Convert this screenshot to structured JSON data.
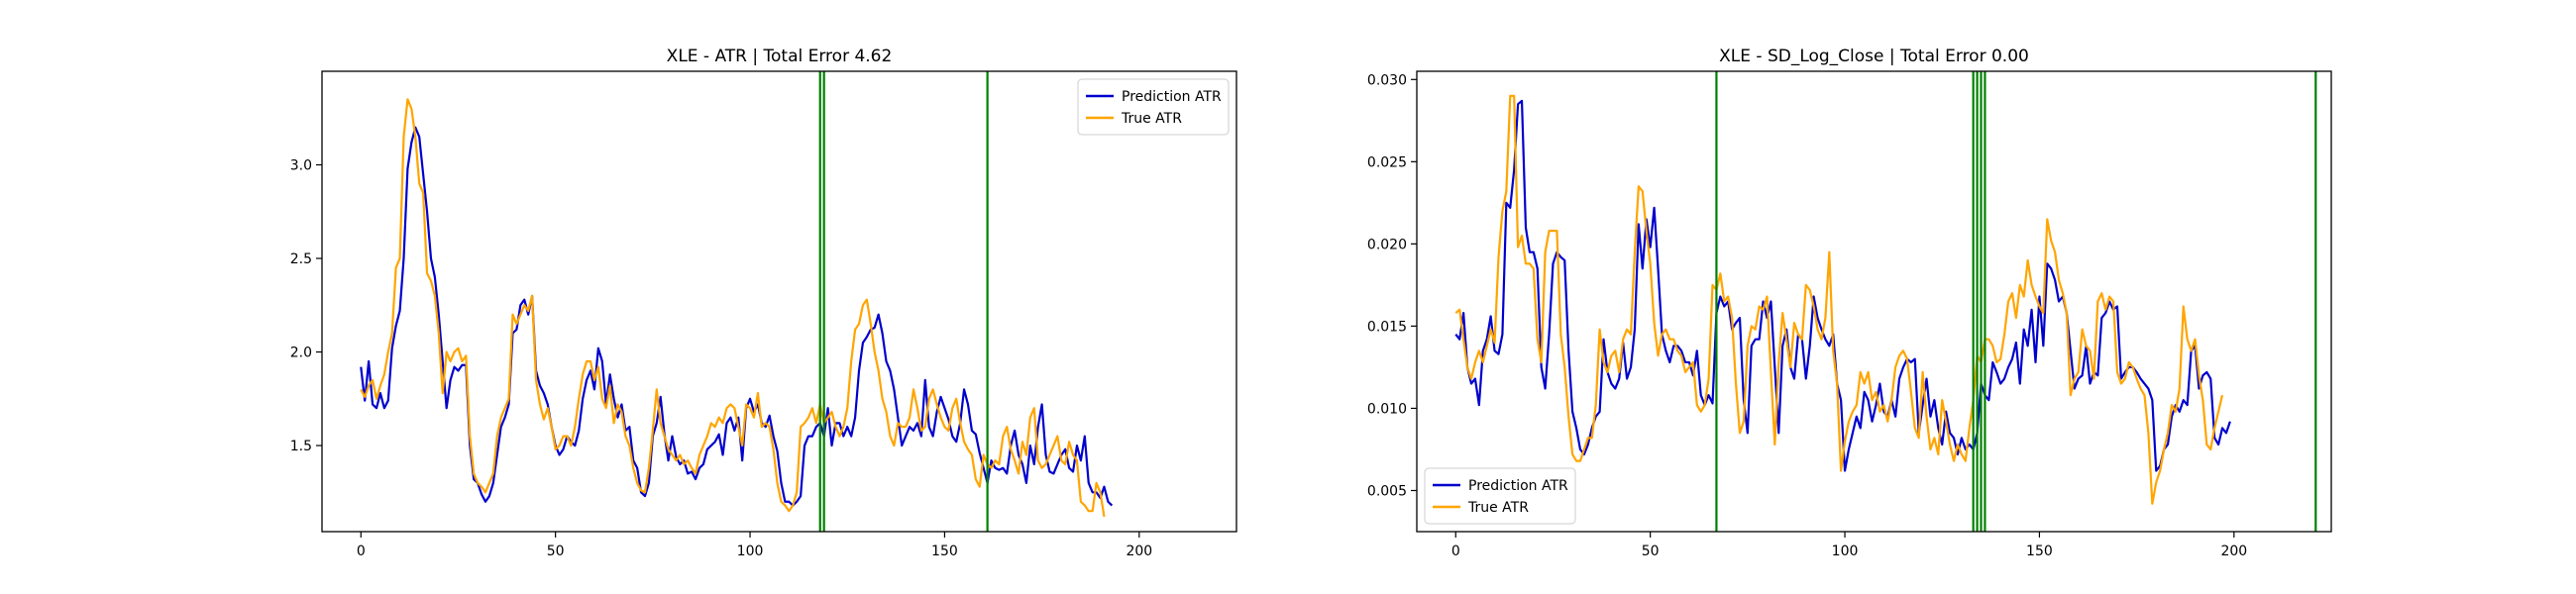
{
  "chart_data": [
    {
      "type": "line",
      "title": "XLE - ATR | Total Error 4.62",
      "xlim": [
        -10,
        225
      ],
      "ylim": [
        1.04,
        3.5
      ],
      "xticks": [
        0,
        50,
        100,
        150,
        200
      ],
      "yticks": [
        1.5,
        2.0,
        2.5,
        3.0
      ],
      "ytick_labels": [
        "1.5",
        "2.0",
        "2.5",
        "3.0"
      ],
      "legend_position": "upper right",
      "vlines": [
        118,
        119,
        161
      ],
      "vline_color": "#008000",
      "series": [
        {
          "name": "Prediction ATR",
          "color": "#0000cd",
          "values": [
            1.92,
            1.74,
            1.95,
            1.72,
            1.7,
            1.78,
            1.7,
            1.74,
            2.02,
            2.14,
            2.22,
            2.5,
            2.98,
            3.12,
            3.2,
            3.15,
            2.95,
            2.75,
            2.5,
            2.4,
            2.2,
            1.95,
            1.7,
            1.85,
            1.92,
            1.9,
            1.93,
            1.93,
            1.5,
            1.32,
            1.3,
            1.24,
            1.2,
            1.23,
            1.3,
            1.45,
            1.6,
            1.65,
            1.72,
            2.1,
            2.12,
            2.25,
            2.28,
            2.2,
            2.3,
            1.9,
            1.82,
            1.78,
            1.72,
            1.6,
            1.5,
            1.45,
            1.48,
            1.55,
            1.52,
            1.5,
            1.58,
            1.75,
            1.85,
            1.9,
            1.8,
            2.02,
            1.95,
            1.72,
            1.88,
            1.75,
            1.65,
            1.72,
            1.58,
            1.6,
            1.42,
            1.38,
            1.25,
            1.23,
            1.3,
            1.55,
            1.62,
            1.76,
            1.56,
            1.42,
            1.55,
            1.44,
            1.4,
            1.42,
            1.35,
            1.36,
            1.32,
            1.38,
            1.4,
            1.48,
            1.5,
            1.52,
            1.56,
            1.45,
            1.62,
            1.65,
            1.58,
            1.65,
            1.42,
            1.7,
            1.75,
            1.68,
            1.72,
            1.62,
            1.6,
            1.66,
            1.55,
            1.47,
            1.3,
            1.2,
            1.2,
            1.18,
            1.2,
            1.23,
            1.5,
            1.55,
            1.55,
            1.6,
            1.62,
            1.55,
            1.7,
            1.5,
            1.62,
            1.62,
            1.55,
            1.6,
            1.55,
            1.65,
            1.9,
            2.05,
            2.08,
            2.12,
            2.13,
            2.2,
            2.1,
            1.95,
            1.9,
            1.8,
            1.65,
            1.5,
            1.55,
            1.6,
            1.58,
            1.62,
            1.55,
            1.85,
            1.6,
            1.55,
            1.68,
            1.76,
            1.7,
            1.64,
            1.55,
            1.52,
            1.62,
            1.8,
            1.72,
            1.58,
            1.56,
            1.46,
            1.38,
            1.3,
            1.42,
            1.38,
            1.37,
            1.38,
            1.35,
            1.5,
            1.58,
            1.45,
            1.4,
            1.3,
            1.5,
            1.4,
            1.6,
            1.72,
            1.45,
            1.36,
            1.35,
            1.4,
            1.45,
            1.48,
            1.38,
            1.36,
            1.5,
            1.42,
            1.55,
            1.3,
            1.25,
            1.25,
            1.22,
            1.28,
            1.2,
            1.18
          ]
        },
        {
          "name": "True ATR",
          "color": "#ffa500",
          "values": [
            1.8,
            1.76,
            1.82,
            1.85,
            1.75,
            1.82,
            1.88,
            2.0,
            2.1,
            2.45,
            2.5,
            3.15,
            3.35,
            3.3,
            3.15,
            2.9,
            2.85,
            2.42,
            2.38,
            2.3,
            2.1,
            1.78,
            2.0,
            1.95,
            2.0,
            2.02,
            1.95,
            1.98,
            1.55,
            1.35,
            1.3,
            1.28,
            1.25,
            1.3,
            1.35,
            1.55,
            1.65,
            1.7,
            1.75,
            2.2,
            2.15,
            2.2,
            2.25,
            2.22,
            2.3,
            1.85,
            1.72,
            1.64,
            1.7,
            1.6,
            1.48,
            1.5,
            1.55,
            1.55,
            1.5,
            1.6,
            1.75,
            1.88,
            1.95,
            1.95,
            1.85,
            1.92,
            1.75,
            1.7,
            1.82,
            1.62,
            1.72,
            1.68,
            1.55,
            1.5,
            1.38,
            1.3,
            1.26,
            1.25,
            1.38,
            1.58,
            1.8,
            1.62,
            1.55,
            1.48,
            1.45,
            1.42,
            1.45,
            1.4,
            1.42,
            1.38,
            1.35,
            1.45,
            1.5,
            1.55,
            1.62,
            1.6,
            1.65,
            1.62,
            1.7,
            1.72,
            1.7,
            1.6,
            1.5,
            1.72,
            1.7,
            1.65,
            1.78,
            1.6,
            1.62,
            1.6,
            1.48,
            1.3,
            1.2,
            1.18,
            1.15,
            1.18,
            1.25,
            1.6,
            1.62,
            1.65,
            1.7,
            1.62,
            1.72,
            1.62,
            1.65,
            1.68,
            1.6,
            1.55,
            1.6,
            1.7,
            1.95,
            2.12,
            2.15,
            2.25,
            2.28,
            2.15,
            2.0,
            1.9,
            1.75,
            1.68,
            1.55,
            1.5,
            1.62,
            1.6,
            1.6,
            1.65,
            1.8,
            1.7,
            1.58,
            1.6,
            1.75,
            1.8,
            1.72,
            1.65,
            1.6,
            1.58,
            1.7,
            1.75,
            1.62,
            1.52,
            1.48,
            1.45,
            1.32,
            1.28,
            1.45,
            1.4,
            1.38,
            1.42,
            1.4,
            1.55,
            1.6,
            1.48,
            1.42,
            1.35,
            1.52,
            1.45,
            1.65,
            1.7,
            1.42,
            1.38,
            1.4,
            1.45,
            1.5,
            1.55,
            1.42,
            1.4,
            1.52,
            1.45,
            1.42,
            1.2,
            1.18,
            1.15,
            1.15,
            1.3,
            1.25,
            1.12
          ]
        }
      ]
    },
    {
      "type": "line",
      "title": "XLE - SD_Log_Close | Total Error 0.00",
      "xlim": [
        -10,
        225
      ],
      "ylim": [
        0.0025,
        0.0305
      ],
      "xticks": [
        0,
        50,
        100,
        150,
        200
      ],
      "yticks": [
        0.005,
        0.01,
        0.015,
        0.02,
        0.025,
        0.03
      ],
      "ytick_labels": [
        "0.005",
        "0.010",
        "0.015",
        "0.020",
        "0.025",
        "0.030"
      ],
      "legend_position": "lower left",
      "vlines": [
        67,
        133,
        134,
        135,
        136,
        221
      ],
      "vline_color": "#008000",
      "series": [
        {
          "name": "Prediction ATR",
          "color": "#0000cd",
          "values": [
            0.0145,
            0.0142,
            0.0158,
            0.0125,
            0.0115,
            0.0118,
            0.0102,
            0.0135,
            0.0142,
            0.0156,
            0.0135,
            0.0133,
            0.0145,
            0.0225,
            0.0222,
            0.0245,
            0.0285,
            0.0287,
            0.021,
            0.0195,
            0.0195,
            0.0185,
            0.0125,
            0.0112,
            0.0145,
            0.0188,
            0.0195,
            0.0192,
            0.019,
            0.0135,
            0.0098,
            0.0088,
            0.0075,
            0.0072,
            0.0078,
            0.0088,
            0.0095,
            0.0098,
            0.0142,
            0.0122,
            0.0115,
            0.0112,
            0.0118,
            0.014,
            0.0118,
            0.0125,
            0.0148,
            0.0212,
            0.0185,
            0.0215,
            0.0198,
            0.0222,
            0.0185,
            0.0145,
            0.0135,
            0.0128,
            0.0138,
            0.0138,
            0.0135,
            0.0128,
            0.0128,
            0.012,
            0.0135,
            0.0108,
            0.0102,
            0.0108,
            0.0103,
            0.0158,
            0.0168,
            0.0162,
            0.0165,
            0.0148,
            0.0152,
            0.0155,
            0.0105,
            0.0085,
            0.0138,
            0.0142,
            0.0142,
            0.0165,
            0.0155,
            0.0165,
            0.0125,
            0.0085,
            0.0138,
            0.0148,
            0.0125,
            0.0118,
            0.0145,
            0.0142,
            0.0118,
            0.0138,
            0.0168,
            0.0155,
            0.0148,
            0.0142,
            0.0138,
            0.0145,
            0.0115,
            0.0105,
            0.0062,
            0.0075,
            0.0085,
            0.0095,
            0.0088,
            0.011,
            0.0105,
            0.0092,
            0.0102,
            0.0115,
            0.0098,
            0.0095,
            0.0105,
            0.0095,
            0.0118,
            0.0125,
            0.013,
            0.0128,
            0.013,
            0.0085,
            0.0102,
            0.0118,
            0.0095,
            0.0105,
            0.0088,
            0.0078,
            0.0098,
            0.0085,
            0.0082,
            0.0072,
            0.0082,
            0.0075,
            0.0078,
            0.0075,
            0.0085,
            0.0115,
            0.0108,
            0.0105,
            0.0128,
            0.0122,
            0.0115,
            0.0118,
            0.0125,
            0.013,
            0.014,
            0.0115,
            0.0148,
            0.0138,
            0.016,
            0.0128,
            0.0168,
            0.0138,
            0.0188,
            0.0185,
            0.0178,
            0.0165,
            0.0168,
            0.0158,
            0.0135,
            0.0112,
            0.0118,
            0.012,
            0.0138,
            0.0115,
            0.0122,
            0.012,
            0.0155,
            0.0158,
            0.0165,
            0.016,
            0.0162,
            0.0118,
            0.0122,
            0.0125,
            0.0125,
            0.0122,
            0.0118,
            0.0115,
            0.0112,
            0.0105,
            0.0062,
            0.0065,
            0.0075,
            0.0078,
            0.0095,
            0.0102,
            0.0098,
            0.0105,
            0.0102,
            0.0135,
            0.0138,
            0.0112,
            0.012,
            0.0122,
            0.0118,
            0.0082,
            0.0078,
            0.0088,
            0.0085,
            0.0092
          ]
        },
        {
          "name": "True ATR",
          "color": "#ffa500",
          "values": [
            0.0158,
            0.016,
            0.0142,
            0.0125,
            0.0118,
            0.0128,
            0.0135,
            0.0128,
            0.0138,
            0.0148,
            0.014,
            0.0192,
            0.022,
            0.0232,
            0.029,
            0.029,
            0.0198,
            0.0205,
            0.0188,
            0.0188,
            0.0185,
            0.0142,
            0.0128,
            0.0195,
            0.0208,
            0.0208,
            0.0208,
            0.0145,
            0.0125,
            0.0095,
            0.0072,
            0.0068,
            0.0068,
            0.0075,
            0.0082,
            0.0082,
            0.0102,
            0.0148,
            0.0128,
            0.0122,
            0.0132,
            0.0135,
            0.0122,
            0.0142,
            0.0148,
            0.0145,
            0.0195,
            0.0235,
            0.0232,
            0.0208,
            0.0188,
            0.0152,
            0.0132,
            0.0145,
            0.0148,
            0.0142,
            0.0142,
            0.0135,
            0.0132,
            0.0122,
            0.0125,
            0.0128,
            0.0102,
            0.0098,
            0.0102,
            0.0118,
            0.0175,
            0.0172,
            0.0182,
            0.0165,
            0.0168,
            0.0155,
            0.0115,
            0.0085,
            0.0092,
            0.0138,
            0.015,
            0.0148,
            0.0162,
            0.016,
            0.0168,
            0.0122,
            0.0078,
            0.0128,
            0.0158,
            0.0142,
            0.0125,
            0.0152,
            0.0145,
            0.0142,
            0.0175,
            0.0172,
            0.0162,
            0.0148,
            0.0142,
            0.0155,
            0.0195,
            0.0135,
            0.0115,
            0.0062,
            0.008,
            0.0092,
            0.0098,
            0.0102,
            0.0122,
            0.0115,
            0.0122,
            0.0105,
            0.011,
            0.0098,
            0.0102,
            0.0092,
            0.0105,
            0.0125,
            0.0132,
            0.0135,
            0.013,
            0.011,
            0.0088,
            0.0082,
            0.0122,
            0.0095,
            0.0075,
            0.0082,
            0.0072,
            0.0105,
            0.0092,
            0.0078,
            0.0068,
            0.0078,
            0.0072,
            0.0068,
            0.0088,
            0.0105,
            0.0132,
            0.0128,
            0.0142,
            0.0142,
            0.0138,
            0.0128,
            0.013,
            0.0145,
            0.0165,
            0.017,
            0.0155,
            0.0175,
            0.0168,
            0.019,
            0.0175,
            0.0168,
            0.0162,
            0.0158,
            0.0215,
            0.0202,
            0.0195,
            0.0178,
            0.017,
            0.0158,
            0.0108,
            0.0118,
            0.0122,
            0.0148,
            0.0138,
            0.0135,
            0.0118,
            0.0165,
            0.017,
            0.016,
            0.0168,
            0.0165,
            0.0122,
            0.0115,
            0.0118,
            0.0128,
            0.0125,
            0.0118,
            0.0112,
            0.0108,
            0.0085,
            0.0042,
            0.0055,
            0.0062,
            0.0075,
            0.0085,
            0.0102,
            0.0098,
            0.0112,
            0.0162,
            0.0142,
            0.0135,
            0.0142,
            0.012,
            0.0105,
            0.0078,
            0.0075,
            0.0088,
            0.0098,
            0.0108
          ]
        }
      ]
    }
  ]
}
